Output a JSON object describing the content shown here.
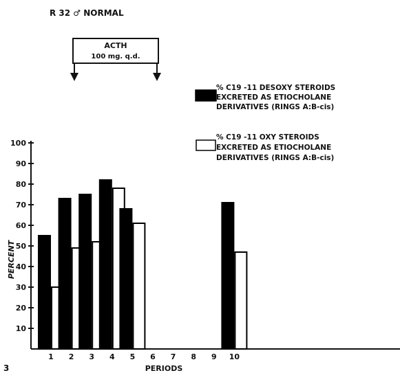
{
  "header": {
    "subject": "R 32 ♂ NORMAL",
    "figure_number": "3"
  },
  "treatment_box": {
    "line1": "ACTH",
    "line2": "100 mg. q.d."
  },
  "chart_data": {
    "type": "bar",
    "x": [
      1,
      2,
      3,
      4,
      5,
      10
    ],
    "tick_labels": [
      "1",
      "2",
      "3",
      "4",
      "5",
      "6",
      "7",
      "8",
      "9",
      "10"
    ],
    "xlabel": "PERIODS",
    "ylabel": "PERCENT",
    "ylim": [
      0,
      100
    ],
    "yticks": [
      10,
      20,
      30,
      40,
      50,
      60,
      70,
      80,
      90,
      100
    ],
    "series": [
      {
        "name_lines": [
          "% C19 -11 DESOXY STEROIDS",
          "EXCRETED AS ETIOCHOLANE",
          "DERIVATIVES (RINGS A:B-cis)"
        ],
        "fill": "#000000",
        "values": [
          55,
          73,
          75,
          82,
          68,
          71
        ]
      },
      {
        "name_lines": [
          "% C19 -11 OXY STEROIDS",
          "EXCRETED AS ETIOCHOLANE",
          "DERIVATIVES (RINGS A:B-cis)"
        ],
        "fill": "#ffffff",
        "values": [
          30,
          49,
          52,
          78,
          61,
          47
        ]
      }
    ],
    "treatment_periods": [
      2,
      5
    ],
    "grid": false,
    "legend_position": "top-right"
  }
}
